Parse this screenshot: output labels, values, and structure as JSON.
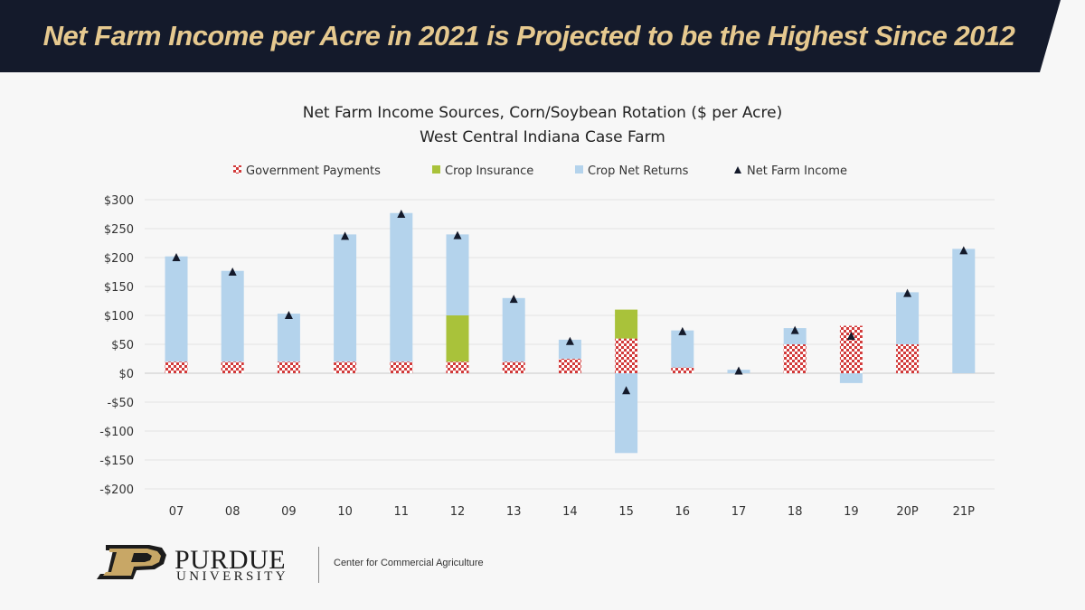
{
  "banner": {
    "title": "Net Farm Income per Acre in 2021 is Projected to be the Highest Since 2012",
    "background_color": "#141a2b",
    "text_color": "#e6c98f"
  },
  "chart_data": {
    "type": "bar",
    "title": "Net Farm Income Sources, Corn/Soybean Rotation ($ per Acre)",
    "subtitle": "West Central Indiana Case Farm",
    "xlabel": "",
    "ylabel": "",
    "ylim": [
      -200,
      300
    ],
    "yticks": [
      300,
      250,
      200,
      150,
      100,
      50,
      0,
      -50,
      -100,
      -150,
      -200
    ],
    "ytick_labels": [
      "$300",
      "$250",
      "$200",
      "$150",
      "$100",
      "$50",
      "$0",
      "-$50",
      "-$100",
      "-$150",
      "-$200"
    ],
    "grid": true,
    "legend_position": "top",
    "stacked": true,
    "categories": [
      "07",
      "08",
      "09",
      "10",
      "11",
      "12",
      "13",
      "14",
      "15",
      "16",
      "17",
      "18",
      "19",
      "20P",
      "21P"
    ],
    "series": [
      {
        "name": "Government Payments",
        "kind": "bar",
        "pattern": "red-checker",
        "color": "#d23a3a",
        "values": [
          20,
          20,
          20,
          20,
          20,
          20,
          20,
          25,
          60,
          10,
          0,
          50,
          82,
          50,
          0
        ]
      },
      {
        "name": "Crop Insurance",
        "kind": "bar",
        "color": "#a9c23a",
        "values": [
          0,
          0,
          0,
          0,
          0,
          80,
          0,
          0,
          50,
          0,
          0,
          0,
          0,
          0,
          0
        ]
      },
      {
        "name": "Crop Net Returns",
        "kind": "bar",
        "color": "#b4d3ec",
        "values": [
          182,
          157,
          83,
          220,
          257,
          140,
          110,
          33,
          -138,
          64,
          6,
          28,
          -17,
          90,
          215
        ]
      },
      {
        "name": "Net Farm Income",
        "kind": "marker",
        "marker": "triangle",
        "color": "#141a2b",
        "values": [
          200,
          175,
          100,
          237,
          275,
          238,
          128,
          55,
          -30,
          72,
          4,
          74,
          64,
          138,
          212
        ]
      }
    ]
  },
  "footer": {
    "logo_word": "PURDUE",
    "logo_sub": "UNIVERSITY",
    "center_name": "Center for Commercial Agriculture"
  }
}
